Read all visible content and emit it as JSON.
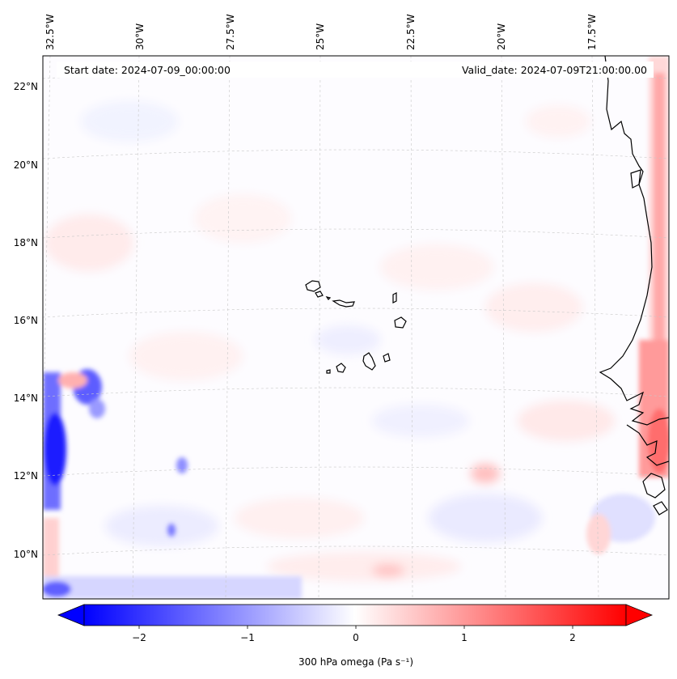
{
  "map": {
    "start_date": "Start date: 2024-07-09_00:00:00",
    "valid_date": "Valid_date: 2024-07-09T21:00:00.00",
    "longitude_labels": [
      "32.5°W",
      "30°W",
      "27.5°W",
      "25°W",
      "22.5°W",
      "20°W",
      "17.5°W"
    ],
    "latitude_labels": [
      "22°N",
      "20°N",
      "18°N",
      "16°N",
      "14°N",
      "12°N",
      "10°N"
    ],
    "field": "300 hPa omega",
    "colormap": "bwr",
    "colors": {
      "negative": "#0000ff",
      "zero": "#ffffff",
      "positive": "#ff0000"
    }
  },
  "colorbar": {
    "label": "300 hPa omega (Pa s⁻¹)",
    "ticks": [
      "−2",
      "−1",
      "0",
      "1",
      "2"
    ],
    "range": [
      -2.6,
      2.6
    ],
    "extend": "both"
  }
}
